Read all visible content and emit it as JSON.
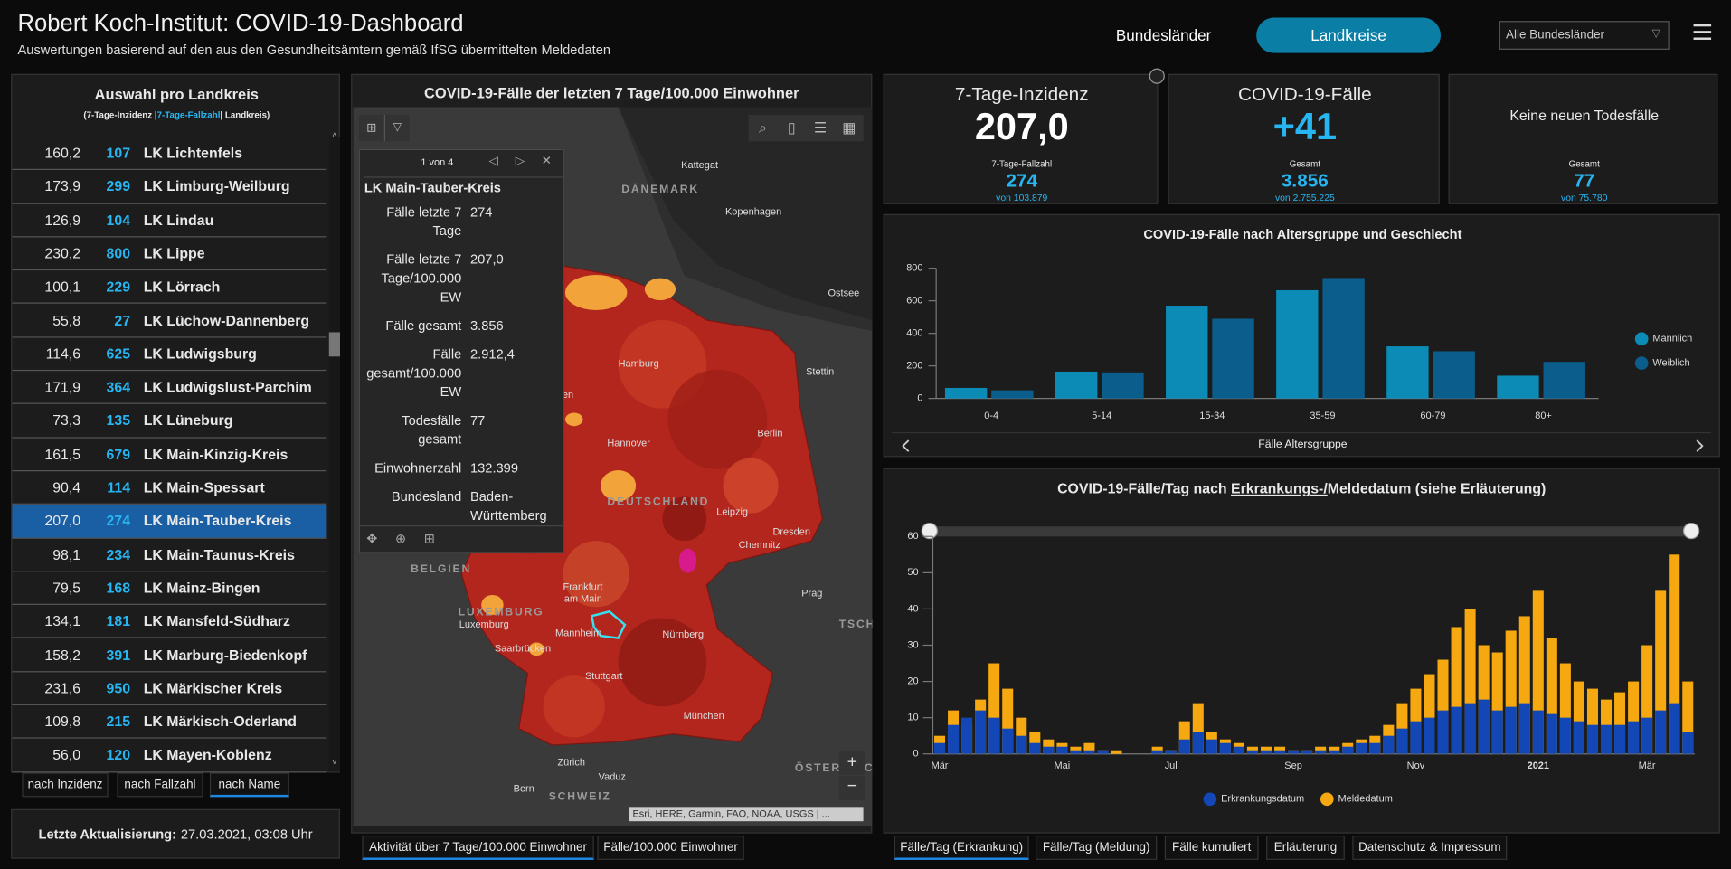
{
  "header": {
    "title": "Robert Koch-Institut: COVID-19-Dashboard",
    "subtitle": "Auswertungen basierend auf den aus den Gesundheitsämtern gemäß IfSG übermittelten Meldedaten"
  },
  "nav": {
    "buttons": [
      "Bundesländer",
      "Landkreise"
    ],
    "active_button": 1,
    "dropdown": "Alle Bundesländer"
  },
  "district_list": {
    "title": "Auswahl pro Landkreis",
    "subtitle_parts": [
      "(7-Tage-Inzidenz |",
      "7-Tage-Fallzahl",
      "| Landkreis)"
    ],
    "selected_row": 11,
    "rows": [
      [
        "160,2",
        "107",
        "LK Lichtenfels"
      ],
      [
        "173,9",
        "299",
        "LK Limburg-Weilburg"
      ],
      [
        "126,9",
        "104",
        "LK Lindau"
      ],
      [
        "230,2",
        "800",
        "LK Lippe"
      ],
      [
        "100,1",
        "229",
        "LK Lörrach"
      ],
      [
        "55,8",
        "27",
        "LK Lüchow-Dannenberg"
      ],
      [
        "114,6",
        "625",
        "LK Ludwigsburg"
      ],
      [
        "171,9",
        "364",
        "LK Ludwigslust-Parchim"
      ],
      [
        "73,3",
        "135",
        "LK Lüneburg"
      ],
      [
        "161,5",
        "679",
        "LK Main-Kinzig-Kreis"
      ],
      [
        "90,4",
        "114",
        "LK Main-Spessart"
      ],
      [
        "207,0",
        "274",
        "LK Main-Tauber-Kreis"
      ],
      [
        "98,1",
        "234",
        "LK Main-Taunus-Kreis"
      ],
      [
        "79,5",
        "168",
        "LK Mainz-Bingen"
      ],
      [
        "134,1",
        "181",
        "LK Mansfeld-Südharz"
      ],
      [
        "158,2",
        "391",
        "LK Marburg-Biedenkopf"
      ],
      [
        "231,6",
        "950",
        "LK Märkischer Kreis"
      ],
      [
        "109,8",
        "215",
        "LK Märkisch-Oderland"
      ],
      [
        "56,0",
        "120",
        "LK Mayen-Koblenz"
      ]
    ]
  },
  "sort_tabs": {
    "tabs": [
      "nach Inzidenz",
      "nach Fallzahl",
      "nach Name"
    ],
    "active_tab": 2
  },
  "last_update": {
    "label": "Letzte Aktualisierung:",
    "value": "27.03.2021, 03:08 Uhr"
  },
  "map": {
    "title": "COVID-19-Fälle der letzten 7 Tage/100.000 Einwohner",
    "labels": [
      "Kattegat",
      "DÄNEMARK",
      "Kopenhagen",
      "Ostsee",
      "Hamburg",
      "Stettin",
      "Bremen",
      "Hannover",
      "Berlin",
      "DEUTSCHLAND",
      "Leipzig",
      "Dresden",
      "Chemnitz",
      "BELGIEN",
      "Prag",
      "TSCHECHIEN",
      "Frankfurt",
      "am Main",
      "LUXEMBURG",
      "Luxemburg",
      "Mannheim",
      "Saarbrücken",
      "Nürnberg",
      "Stuttgart",
      "München",
      "Zürich",
      "Vaduz",
      "Bern",
      "SCHWEIZ",
      "ÖSTERREICH"
    ],
    "attribution": "Esri, HERE, Garmin, FAO, NOAA, USGS | ...",
    "popup": {
      "counter": "1 von 4",
      "name": "LK Main-Tauber-Kreis",
      "fields": [
        [
          "Fälle letzte 7 Tage",
          "274"
        ],
        [
          "Fälle letzte 7 Tage/100.000 EW",
          "207,0"
        ],
        [
          "Fälle gesamt",
          "3.856"
        ],
        [
          "Fälle gesamt/100.000 EW",
          "2.912,4"
        ],
        [
          "Todesfälle gesamt",
          "77"
        ],
        [
          "Einwohnerzahl",
          "132.399"
        ],
        [
          "Bundesland",
          "Baden-Württemberg"
        ]
      ]
    }
  },
  "map_tabs": {
    "tabs": [
      "Aktivität über 7 Tage/100.000 Einwohner",
      "Fälle/100.000 Einwohner"
    ],
    "active_tab": 0
  },
  "kpis": [
    {
      "title": "7-Tage-Inzidenz",
      "value": "207,0",
      "value_color": "#ffffff",
      "detail_label": "7-Tage-Fallzahl",
      "detail_value": "274",
      "detail_total": "von 103.879"
    },
    {
      "title": "COVID-19-Fälle",
      "value": "+41",
      "value_color": "#27b6f2",
      "detail_label": "Gesamt",
      "detail_value": "3.856",
      "detail_total": "von 2.755.225"
    },
    {
      "title": "Keine neuen Todesfälle",
      "detail_label": "Gesamt",
      "detail_value": "77",
      "detail_total": "von 75.780"
    }
  ],
  "age_chart": {
    "type": "bar",
    "title": "COVID-19-Fälle nach Altersgruppe und Geschlecht",
    "x_label": "Fälle Altersgruppe",
    "categories": [
      "0-4",
      "5-14",
      "15-34",
      "35-59",
      "60-79",
      "80+"
    ],
    "series": [
      {
        "name": "Männlich",
        "color": "#0b8bb5",
        "values": [
          65,
          165,
          570,
          665,
          320,
          140
        ]
      },
      {
        "name": "Weiblich",
        "color": "#0b5d8c",
        "values": [
          50,
          160,
          490,
          740,
          290,
          225
        ]
      }
    ],
    "ylim": [
      0,
      800
    ],
    "yticks": [
      0,
      200,
      400,
      600,
      800
    ]
  },
  "daily_chart": {
    "type": "bar",
    "title_parts": [
      "COVID-19-Fälle/Tag nach ",
      "Erkrankungs-/",
      "Meldedatum (siehe Erläuterung)"
    ],
    "categories": [
      "Mär",
      null,
      null,
      null,
      null,
      null,
      null,
      null,
      null,
      "Mai",
      null,
      null,
      null,
      null,
      null,
      null,
      null,
      "Jul",
      null,
      null,
      null,
      null,
      null,
      null,
      null,
      null,
      "Sep",
      null,
      null,
      null,
      null,
      null,
      null,
      null,
      null,
      "Nov",
      null,
      null,
      null,
      null,
      null,
      null,
      null,
      null,
      "2021",
      null,
      null,
      null,
      null,
      null,
      null,
      null,
      "Mär",
      null,
      null,
      null
    ],
    "series": [
      {
        "name": "Erkrankungsdatum",
        "color": "#1247b5",
        "values": [
          3,
          8,
          10,
          12,
          10,
          7,
          5,
          3,
          2,
          2,
          1,
          1,
          1,
          0,
          0,
          0,
          1,
          1,
          4,
          6,
          4,
          3,
          2,
          1,
          1,
          1,
          1,
          1,
          1,
          1,
          2,
          3,
          3,
          5,
          7,
          9,
          10,
          12,
          13,
          14,
          15,
          12,
          13,
          14,
          12,
          11,
          10,
          9,
          8,
          8,
          8,
          9,
          10,
          12,
          14,
          6
        ]
      },
      {
        "name": "Meldedatum",
        "color": "#f5a80f",
        "values": [
          5,
          12,
          8,
          15,
          25,
          18,
          10,
          6,
          4,
          3,
          2,
          3,
          1,
          1,
          0,
          0,
          2,
          1,
          9,
          14,
          6,
          4,
          3,
          2,
          2,
          2,
          1,
          1,
          2,
          2,
          3,
          4,
          5,
          8,
          14,
          18,
          22,
          26,
          35,
          40,
          30,
          28,
          34,
          38,
          45,
          32,
          25,
          20,
          18,
          15,
          17,
          20,
          30,
          45,
          55,
          20
        ]
      }
    ],
    "ylim": [
      0,
      60
    ],
    "yticks": [
      0,
      10,
      20,
      30,
      40,
      50,
      60
    ]
  },
  "bottom_tabs": {
    "tabs": [
      "Fälle/Tag (Erkrankung)",
      "Fälle/Tag (Meldung)",
      "Fälle kumuliert",
      "Erläuterung",
      "Datenschutz & Impressum"
    ],
    "active_tab": 0
  }
}
